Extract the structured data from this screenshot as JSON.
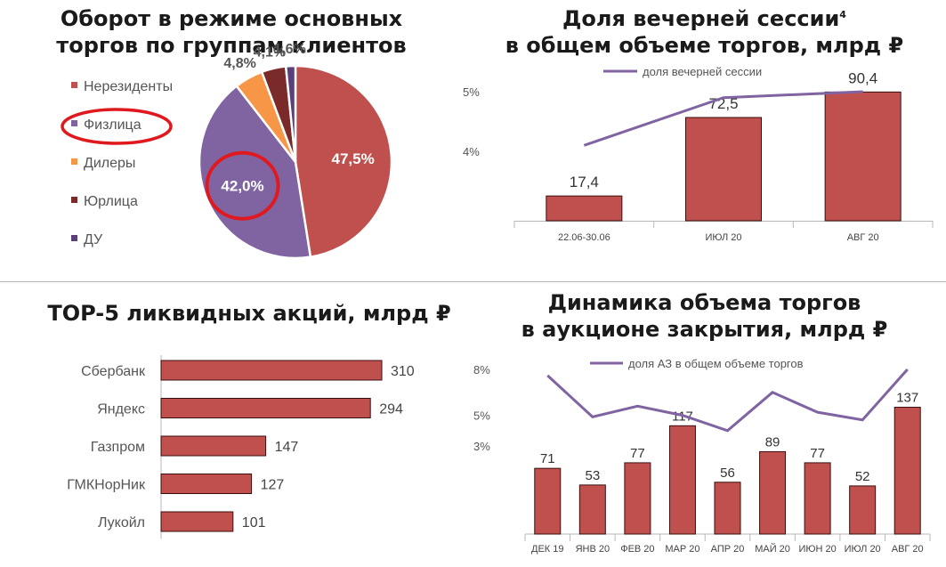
{
  "colors": {
    "bar": "#c0504d",
    "bar_border": "#3a0e0e",
    "line": "#8064a2",
    "annotation": "#e0191f",
    "pie": [
      "#c0504d",
      "#8064a2",
      "#f79646",
      "#7b2a2a",
      "#5b3f7a"
    ]
  },
  "chart_data": [
    {
      "id": "clients",
      "type": "pie",
      "title_lines": [
        "Оборот в режиме основных",
        "торгов по группам клиентов"
      ],
      "legend": [
        "Нерезиденты",
        "Физлица",
        "Дилеры",
        "Юрлица",
        "ДУ"
      ],
      "slices": [
        {
          "name": "Нерезиденты",
          "value": 47.5,
          "label": "47,5%"
        },
        {
          "name": "Физлица",
          "value": 42.0,
          "label": "42,0%"
        },
        {
          "name": "Дилеры",
          "value": 4.8,
          "label": "4,8%"
        },
        {
          "name": "Юрлица",
          "value": 4.1,
          "label": "4,1%"
        },
        {
          "name": "ДУ",
          "value": 1.6,
          "label": "1,6%"
        }
      ],
      "highlighted": [
        "Физлица"
      ]
    },
    {
      "id": "evening",
      "type": "bar+line",
      "title_lines": [
        "Доля вечерней сессии",
        "в общем объеме торгов, млрд ₽"
      ],
      "title_sup": "4",
      "categories": [
        "22.06-30.06",
        "ИЮЛ 20",
        "АВГ 20"
      ],
      "values": [
        17.4,
        72.5,
        90.4
      ],
      "value_labels": [
        "17,4",
        "72,5",
        "90,4"
      ],
      "line_series": {
        "name": "доля вечерней сессии",
        "values": [
          4.1,
          4.9,
          5.0
        ]
      },
      "y2_ticks": [
        "5%",
        "4%"
      ],
      "y2_tick_values": [
        5,
        4
      ]
    },
    {
      "id": "top5",
      "type": "bar",
      "orientation": "horizontal",
      "title": "TOP-5 ликвидных акций, млрд ₽",
      "categories": [
        "Сбербанк",
        "Яндекс",
        "Газпром",
        "ГМКНорНик",
        "Лукойл"
      ],
      "values": [
        310,
        294,
        147,
        127,
        101
      ]
    },
    {
      "id": "closing",
      "type": "bar+line",
      "title_lines": [
        "Динамика объема торгов",
        "в аукционе закрытия, млрд ₽"
      ],
      "categories": [
        "ДЕК 19",
        "ЯНВ 20",
        "ФЕВ 20",
        "МАР 20",
        "АПР 20",
        "МАЙ 20",
        "ИЮН 20",
        "ИЮЛ 20",
        "АВГ 20"
      ],
      "values": [
        71,
        53,
        77,
        117,
        56,
        89,
        77,
        52,
        137
      ],
      "line_series": {
        "name": "доля АЗ в общем объеме торгов",
        "values": [
          7.6,
          4.9,
          5.6,
          5.0,
          4.0,
          6.5,
          5.2,
          4.7,
          8.0
        ]
      },
      "y2_ticks": [
        "8%",
        "5%",
        "3%"
      ],
      "y2_tick_values": [
        8,
        5,
        3
      ]
    }
  ]
}
